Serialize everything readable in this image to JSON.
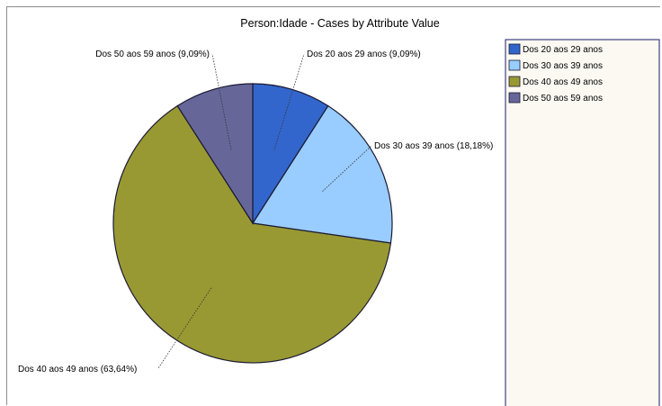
{
  "chart_data": {
    "type": "pie",
    "title": "Person:Idade - Cases by Attribute Value",
    "slices": [
      {
        "name": "Dos 20 aos 29 anos",
        "value": 9.09,
        "label": "Dos 20 aos 29 anos (9,09%)",
        "color": "#3366cc"
      },
      {
        "name": "Dos 30 aos 39 anos",
        "value": 18.18,
        "label": "Dos 30 aos 39 anos (18,18%)",
        "color": "#99ccff"
      },
      {
        "name": "Dos 40 aos 49 anos",
        "value": 63.64,
        "label": "Dos 40 aos 49 anos (63,64%)",
        "color": "#999933"
      },
      {
        "name": "Dos 50 aos 59 anos",
        "value": 9.09,
        "label": "Dos 50 aos 59 anos (9,09%)",
        "color": "#666699"
      }
    ],
    "legend": {
      "placement": "right",
      "entries": [
        "Dos 20 aos 29 anos",
        "Dos 30 aos 39 anos",
        "Dos 40 aos 49 anos",
        "Dos 50 aos 59 anos"
      ]
    },
    "colors": {
      "legend_background": "#fcf9f3",
      "legend_border": "#1a1a66",
      "slice_outline": "#1a1a33"
    }
  }
}
